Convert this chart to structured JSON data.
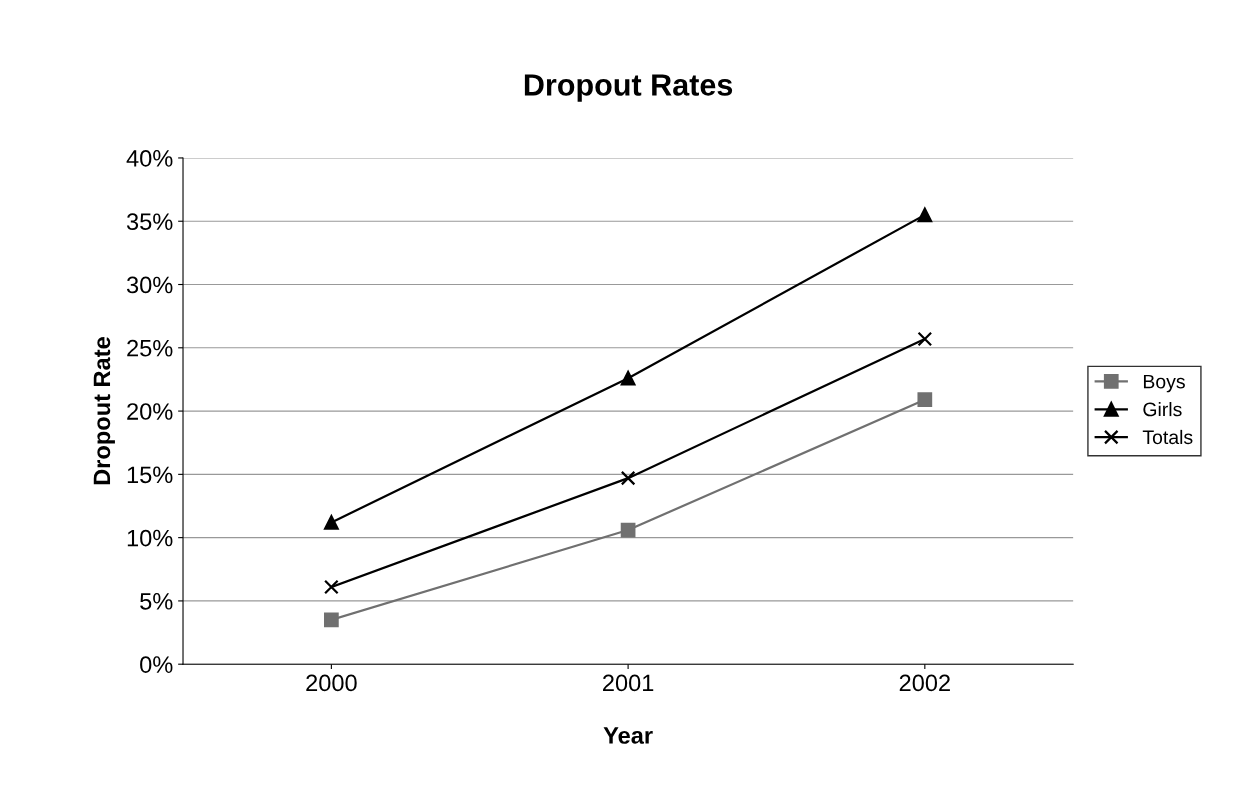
{
  "chart_data": {
    "type": "line",
    "title": "Dropout Rates",
    "xlabel": "Year",
    "ylabel": "Dropout Rate",
    "categories": [
      "2000",
      "2001",
      "2002"
    ],
    "series": [
      {
        "name": "Boys",
        "color": "#707070",
        "marker": "square",
        "values": [
          3.5,
          10.6,
          20.9
        ]
      },
      {
        "name": "Girls",
        "color": "#000000",
        "marker": "triangle",
        "values": [
          11.2,
          22.6,
          35.5
        ]
      },
      {
        "name": "Totals",
        "color": "#000000",
        "marker": "cross",
        "values": [
          6.1,
          14.7,
          25.7
        ]
      }
    ],
    "ylim": [
      0,
      40
    ],
    "yticks": [
      {
        "value": 0,
        "label": "0%"
      },
      {
        "value": 5,
        "label": "5%"
      },
      {
        "value": 10,
        "label": "10%"
      },
      {
        "value": 15,
        "label": "15%"
      },
      {
        "value": 20,
        "label": "20%"
      },
      {
        "value": 25,
        "label": "25%"
      },
      {
        "value": 30,
        "label": "30%"
      },
      {
        "value": 35,
        "label": "35%"
      },
      {
        "value": 40,
        "label": "40%"
      }
    ],
    "grid": "y",
    "legend": "right",
    "line_style": "solid"
  }
}
